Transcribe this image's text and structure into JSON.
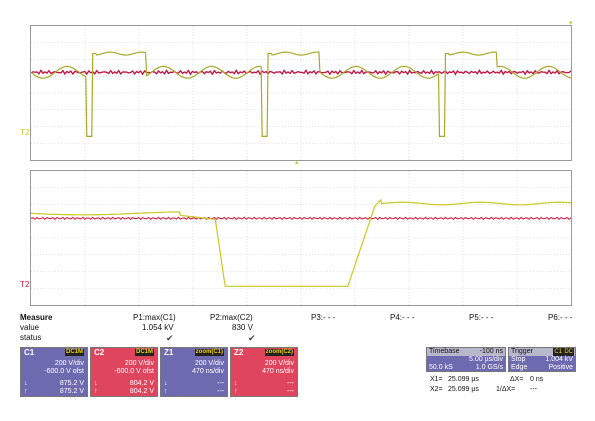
{
  "top_panel": {
    "side_label": "T2",
    "colors": {
      "yellow": "#a8a828",
      "red": "#c01848"
    }
  },
  "bottom_panel": {
    "side_label": "T2",
    "colors": {
      "yellow": "#c8c820",
      "red": "#d02040"
    }
  },
  "measure": {
    "title": "Measure",
    "row_labels": [
      "value",
      "status"
    ],
    "columns": [
      {
        "name": "P1:max(C1)",
        "value": "1.054 kV",
        "status": "✔"
      },
      {
        "name": "P2:max(C2)",
        "value": "830 V",
        "status": "✔"
      },
      {
        "name": "P3:- - -",
        "value": "",
        "status": ""
      },
      {
        "name": "P4:- - -",
        "value": "",
        "status": ""
      },
      {
        "name": "P5:- - -",
        "value": "",
        "status": ""
      },
      {
        "name": "P6:- - -",
        "value": "",
        "status": ""
      }
    ]
  },
  "channels": [
    {
      "name": "C1",
      "tag": "DC1M",
      "color": "#6e6ab0",
      "volts_div": "200 V/div",
      "offset": "-600.0 V ofst",
      "down_val": "875.2 V",
      "up_val": "875.2 V"
    },
    {
      "name": "C2",
      "tag": "DC1M",
      "color": "#e0455e",
      "volts_div": "200 V/div",
      "offset": "-600.0 V ofst",
      "down_val": "804.2 V",
      "up_val": "804.2 V"
    },
    {
      "name": "Z1",
      "tag": "zoom(C1)",
      "color": "#6e6ab0",
      "volts_div": "200 V/div",
      "offset": "470 ns/div",
      "down_val": "---",
      "up_val": "---"
    },
    {
      "name": "Z2",
      "tag": "zoom(C2)",
      "color": "#e0455e",
      "volts_div": "200 V/div",
      "offset": "470 ns/div",
      "down_val": "---",
      "up_val": "---"
    }
  ],
  "timebase": {
    "label": "Timebase",
    "delay": "-100 ns",
    "time_div": "5.00 µs/div",
    "samples": "50.0 kS",
    "rate": "1.0 GS/s"
  },
  "trigger": {
    "label": "Trigger",
    "source": "C1",
    "coupling": "DC",
    "mode": "Stop",
    "level": "1.004 kV",
    "type": "Edge",
    "slope": "Positive"
  },
  "cursors": {
    "x1_label": "X1=",
    "x1_value": "25.099 µs",
    "dx_label": "ΔX=",
    "dx_value": "0 ns",
    "x2_label": "X2=",
    "x2_value": "25.099 µs",
    "inv_dx_label": "1/ΔX=",
    "inv_dx_value": "---"
  }
}
